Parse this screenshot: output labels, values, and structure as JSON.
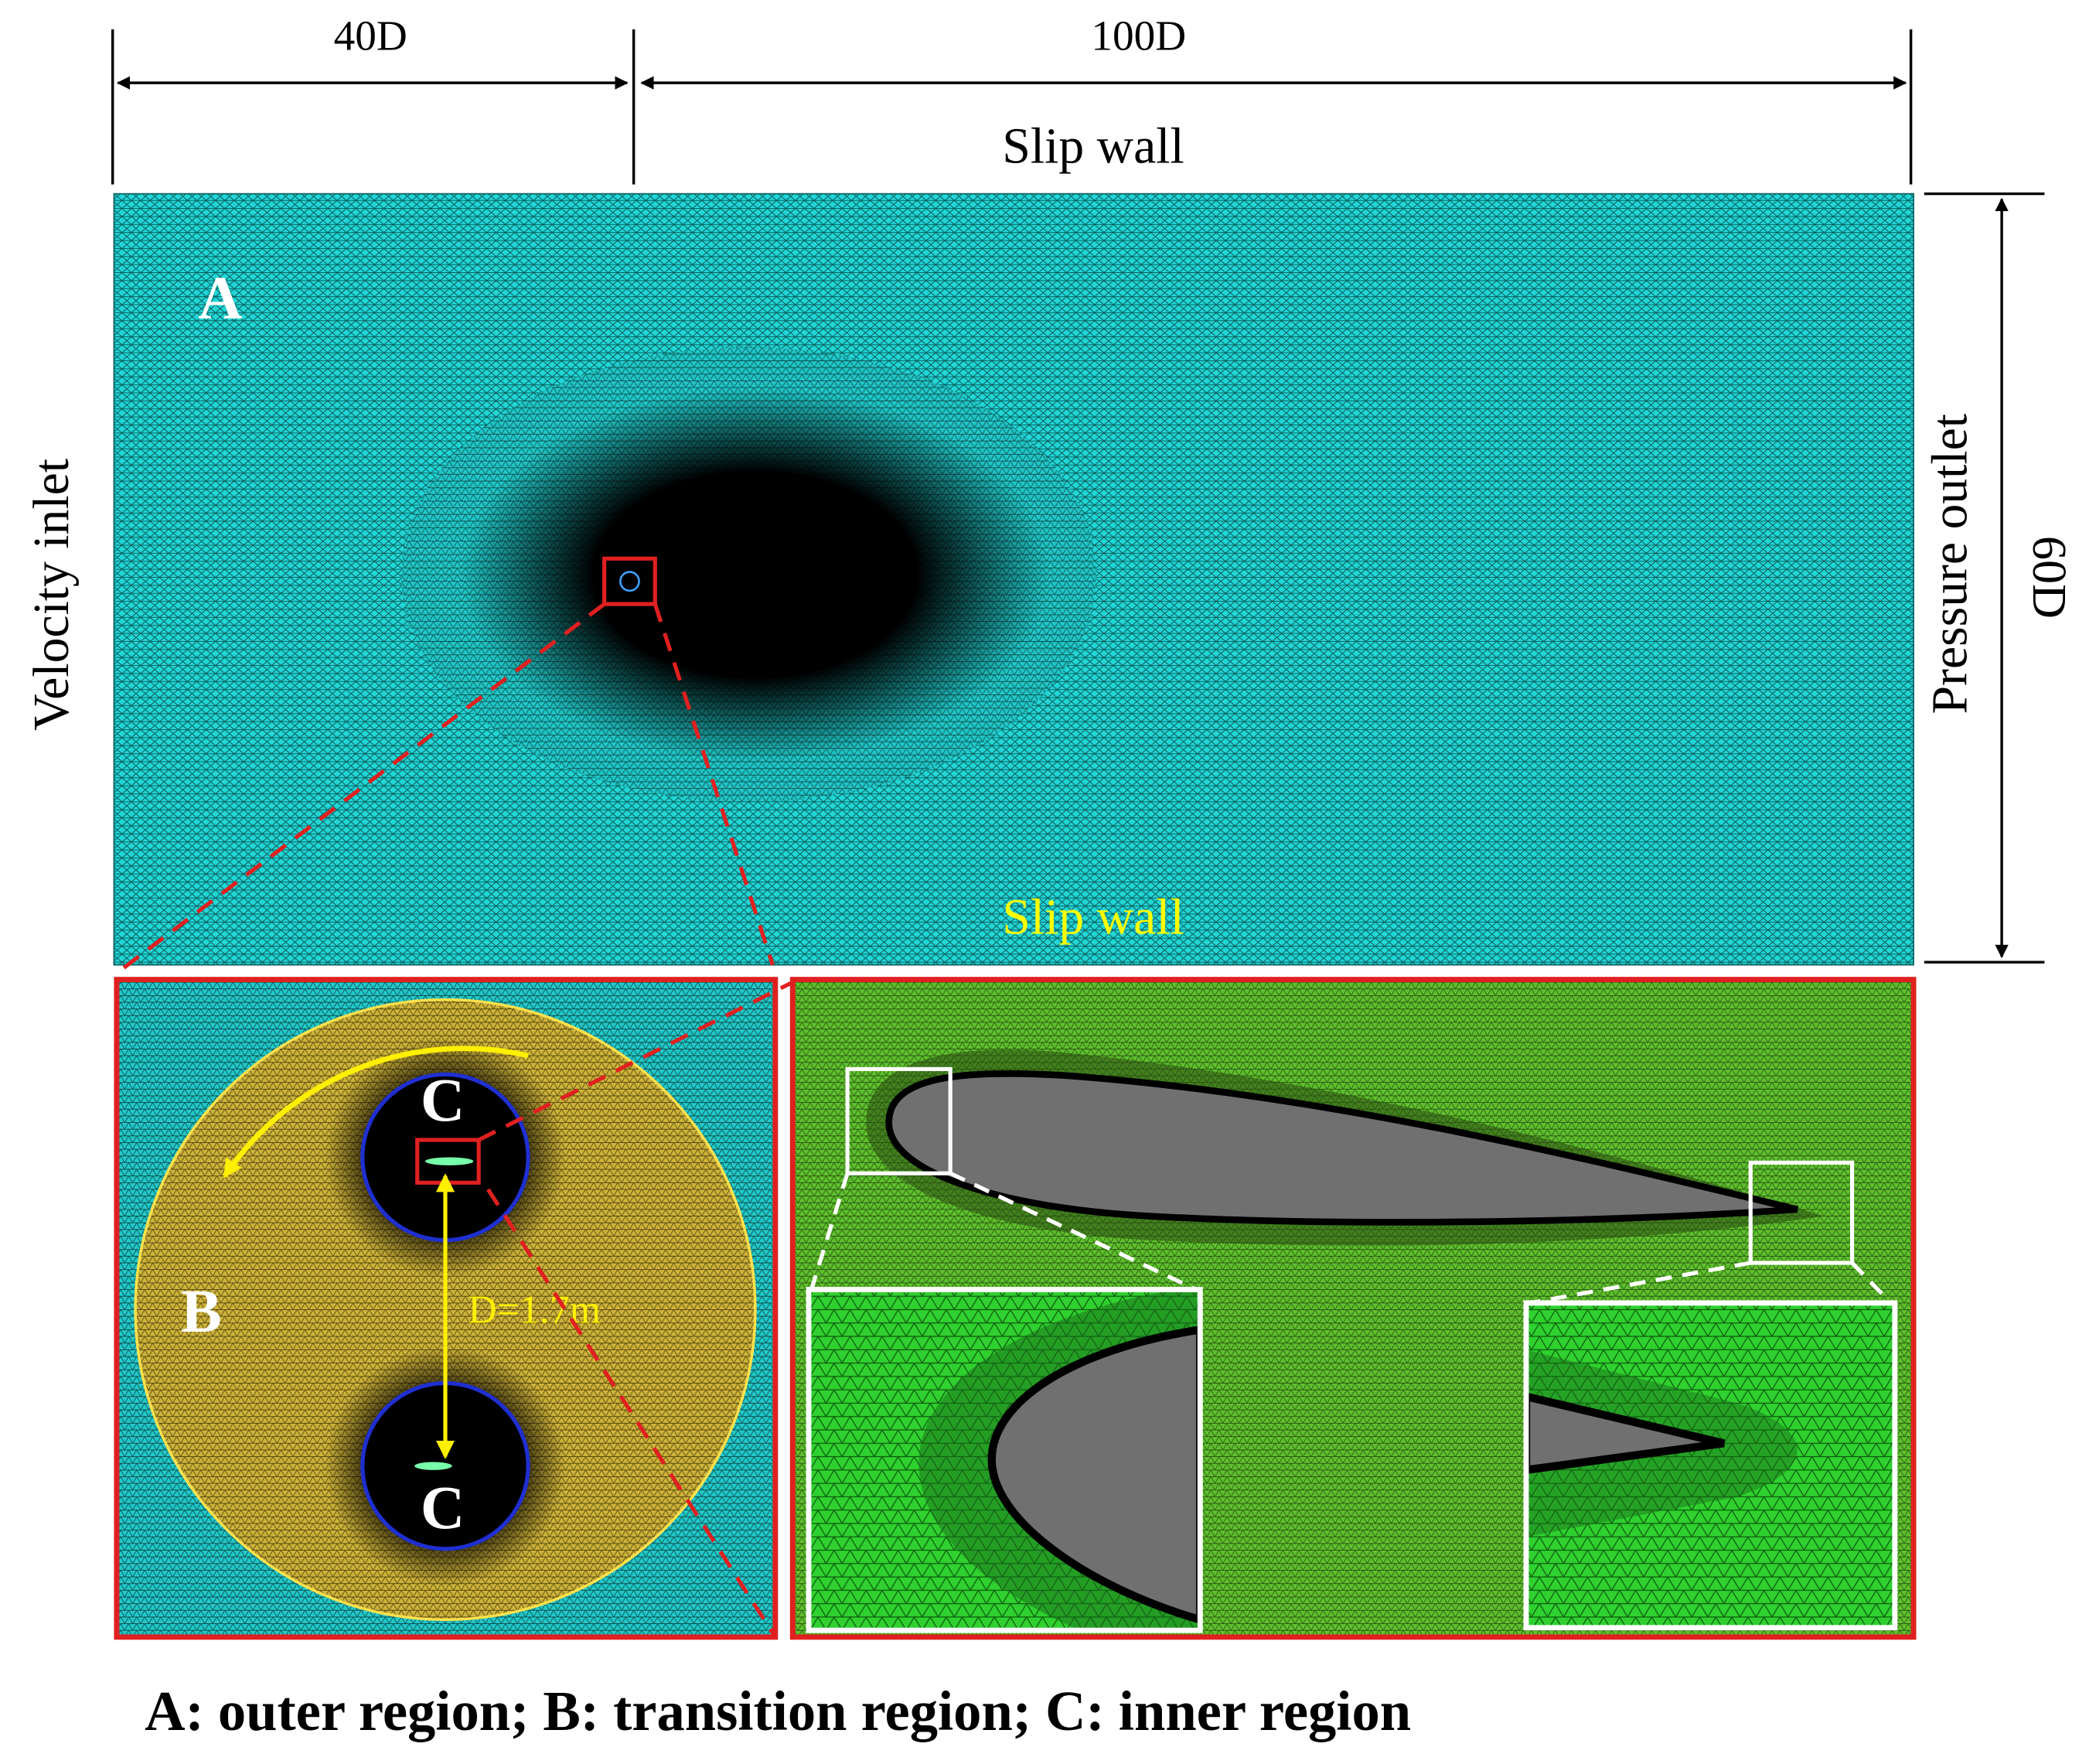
{
  "dimensions": {
    "inlet_span": "40D",
    "domain_length": "100D",
    "domain_height": "60D"
  },
  "boundaries": {
    "top": "Slip wall",
    "bottom": "Slip wall",
    "left": "Velocity inlet",
    "right": "Pressure outlet"
  },
  "regions": {
    "outer": "A",
    "transition": "B",
    "inner_top": "C",
    "inner_bottom": "C"
  },
  "rotor_diameter": "D=1.7m",
  "caption": "A: outer region; B: transition region; C: inner region"
}
